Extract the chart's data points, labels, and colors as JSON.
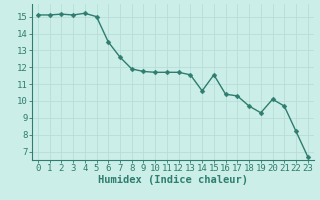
{
  "x": [
    0,
    1,
    2,
    3,
    4,
    5,
    6,
    7,
    8,
    9,
    10,
    11,
    12,
    13,
    14,
    15,
    16,
    17,
    18,
    19,
    20,
    21,
    22,
    23
  ],
  "y": [
    15.1,
    15.1,
    15.15,
    15.1,
    15.2,
    15.0,
    13.5,
    12.6,
    11.9,
    11.75,
    11.7,
    11.7,
    11.7,
    11.55,
    10.6,
    11.55,
    10.4,
    10.3,
    9.7,
    9.3,
    10.1,
    9.7,
    8.2,
    6.7
  ],
  "line_color": "#2e7d6e",
  "marker_color": "#2e7d6e",
  "bg_color": "#cceee8",
  "grid_color": "#b8ddd8",
  "xlabel": "Humidex (Indice chaleur)",
  "xlim": [
    -0.5,
    23.5
  ],
  "ylim": [
    6.5,
    15.75
  ],
  "yticks": [
    7,
    8,
    9,
    10,
    11,
    12,
    13,
    14,
    15
  ],
  "xticks": [
    0,
    1,
    2,
    3,
    4,
    5,
    6,
    7,
    8,
    9,
    10,
    11,
    12,
    13,
    14,
    15,
    16,
    17,
    18,
    19,
    20,
    21,
    22,
    23
  ],
  "marker_size": 2.5,
  "line_width": 1.0,
  "tick_font_size": 6.5,
  "label_font_size": 7.5
}
